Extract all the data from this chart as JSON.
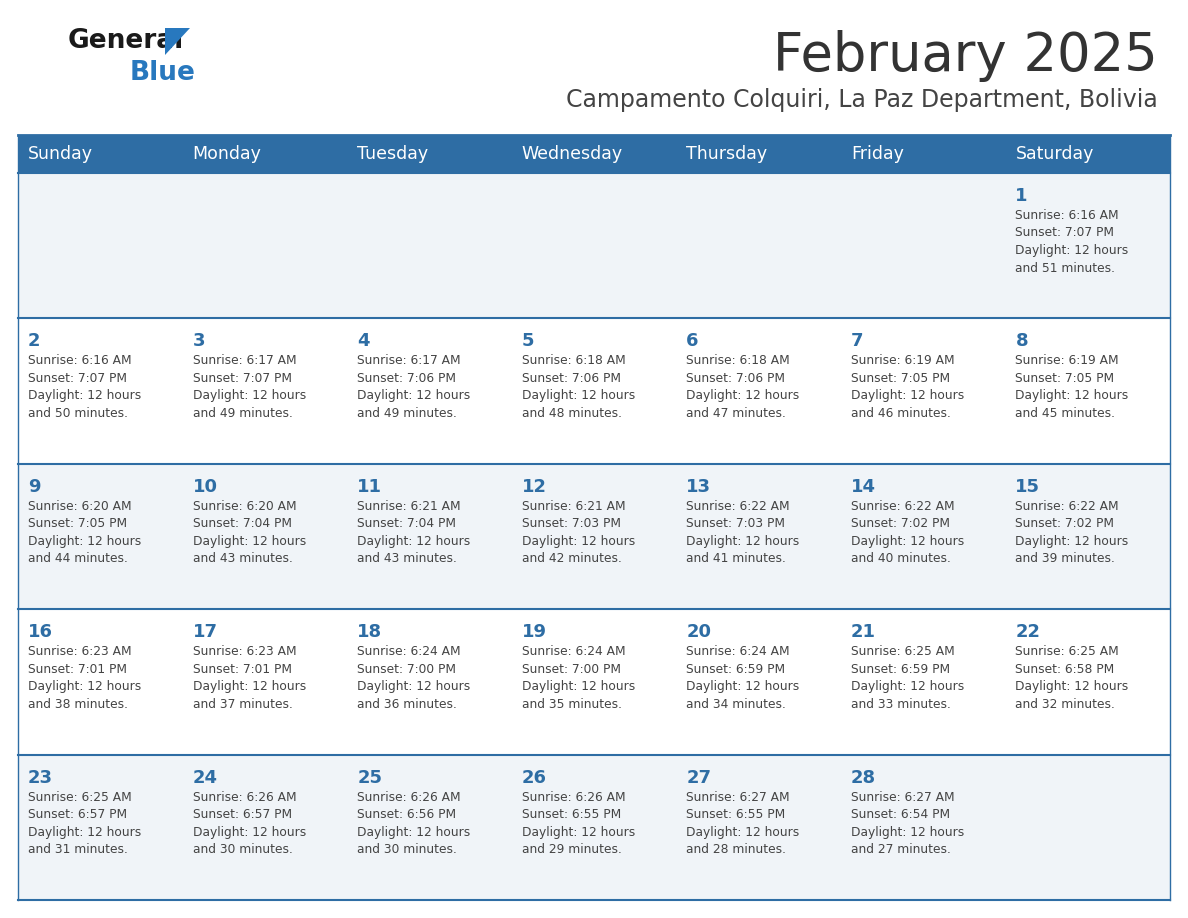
{
  "title": "February 2025",
  "subtitle": "Campamento Colquiri, La Paz Department, Bolivia",
  "days_of_week": [
    "Sunday",
    "Monday",
    "Tuesday",
    "Wednesday",
    "Thursday",
    "Friday",
    "Saturday"
  ],
  "header_bg": "#2E6DA4",
  "header_text": "#FFFFFF",
  "row_bg_light": "#F0F4F8",
  "row_bg_white": "#FFFFFF",
  "separator_color": "#2E6DA4",
  "day_number_color": "#2E6DA4",
  "cell_text_color": "#444444",
  "title_color": "#333333",
  "subtitle_color": "#444444",
  "logo_general_color": "#1a1a1a",
  "logo_blue_color": "#2878BE",
  "calendar_data": [
    [
      null,
      null,
      null,
      null,
      null,
      null,
      {
        "day": 1,
        "sunrise": "6:16 AM",
        "sunset": "7:07 PM",
        "daylight": "12 hours and 51 minutes."
      }
    ],
    [
      {
        "day": 2,
        "sunrise": "6:16 AM",
        "sunset": "7:07 PM",
        "daylight": "12 hours and 50 minutes."
      },
      {
        "day": 3,
        "sunrise": "6:17 AM",
        "sunset": "7:07 PM",
        "daylight": "12 hours and 49 minutes."
      },
      {
        "day": 4,
        "sunrise": "6:17 AM",
        "sunset": "7:06 PM",
        "daylight": "12 hours and 49 minutes."
      },
      {
        "day": 5,
        "sunrise": "6:18 AM",
        "sunset": "7:06 PM",
        "daylight": "12 hours and 48 minutes."
      },
      {
        "day": 6,
        "sunrise": "6:18 AM",
        "sunset": "7:06 PM",
        "daylight": "12 hours and 47 minutes."
      },
      {
        "day": 7,
        "sunrise": "6:19 AM",
        "sunset": "7:05 PM",
        "daylight": "12 hours and 46 minutes."
      },
      {
        "day": 8,
        "sunrise": "6:19 AM",
        "sunset": "7:05 PM",
        "daylight": "12 hours and 45 minutes."
      }
    ],
    [
      {
        "day": 9,
        "sunrise": "6:20 AM",
        "sunset": "7:05 PM",
        "daylight": "12 hours and 44 minutes."
      },
      {
        "day": 10,
        "sunrise": "6:20 AM",
        "sunset": "7:04 PM",
        "daylight": "12 hours and 43 minutes."
      },
      {
        "day": 11,
        "sunrise": "6:21 AM",
        "sunset": "7:04 PM",
        "daylight": "12 hours and 43 minutes."
      },
      {
        "day": 12,
        "sunrise": "6:21 AM",
        "sunset": "7:03 PM",
        "daylight": "12 hours and 42 minutes."
      },
      {
        "day": 13,
        "sunrise": "6:22 AM",
        "sunset": "7:03 PM",
        "daylight": "12 hours and 41 minutes."
      },
      {
        "day": 14,
        "sunrise": "6:22 AM",
        "sunset": "7:02 PM",
        "daylight": "12 hours and 40 minutes."
      },
      {
        "day": 15,
        "sunrise": "6:22 AM",
        "sunset": "7:02 PM",
        "daylight": "12 hours and 39 minutes."
      }
    ],
    [
      {
        "day": 16,
        "sunrise": "6:23 AM",
        "sunset": "7:01 PM",
        "daylight": "12 hours and 38 minutes."
      },
      {
        "day": 17,
        "sunrise": "6:23 AM",
        "sunset": "7:01 PM",
        "daylight": "12 hours and 37 minutes."
      },
      {
        "day": 18,
        "sunrise": "6:24 AM",
        "sunset": "7:00 PM",
        "daylight": "12 hours and 36 minutes."
      },
      {
        "day": 19,
        "sunrise": "6:24 AM",
        "sunset": "7:00 PM",
        "daylight": "12 hours and 35 minutes."
      },
      {
        "day": 20,
        "sunrise": "6:24 AM",
        "sunset": "6:59 PM",
        "daylight": "12 hours and 34 minutes."
      },
      {
        "day": 21,
        "sunrise": "6:25 AM",
        "sunset": "6:59 PM",
        "daylight": "12 hours and 33 minutes."
      },
      {
        "day": 22,
        "sunrise": "6:25 AM",
        "sunset": "6:58 PM",
        "daylight": "12 hours and 32 minutes."
      }
    ],
    [
      {
        "day": 23,
        "sunrise": "6:25 AM",
        "sunset": "6:57 PM",
        "daylight": "12 hours and 31 minutes."
      },
      {
        "day": 24,
        "sunrise": "6:26 AM",
        "sunset": "6:57 PM",
        "daylight": "12 hours and 30 minutes."
      },
      {
        "day": 25,
        "sunrise": "6:26 AM",
        "sunset": "6:56 PM",
        "daylight": "12 hours and 30 minutes."
      },
      {
        "day": 26,
        "sunrise": "6:26 AM",
        "sunset": "6:55 PM",
        "daylight": "12 hours and 29 minutes."
      },
      {
        "day": 27,
        "sunrise": "6:27 AM",
        "sunset": "6:55 PM",
        "daylight": "12 hours and 28 minutes."
      },
      {
        "day": 28,
        "sunrise": "6:27 AM",
        "sunset": "6:54 PM",
        "daylight": "12 hours and 27 minutes."
      },
      null
    ]
  ]
}
